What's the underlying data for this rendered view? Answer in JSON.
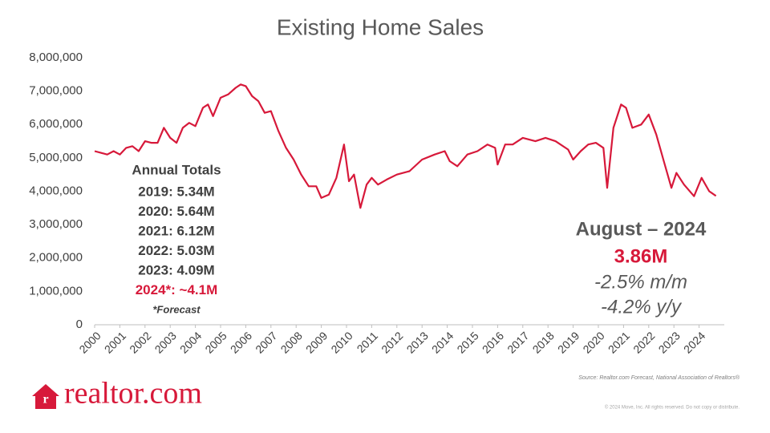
{
  "chart_data": {
    "type": "line",
    "title": "Existing Home Sales",
    "x": [
      2000.0,
      2000.25,
      2000.5,
      2000.75,
      2001.0,
      2001.25,
      2001.5,
      2001.75,
      2002.0,
      2002.25,
      2002.5,
      2002.75,
      2003.0,
      2003.25,
      2003.5,
      2003.75,
      2004.0,
      2004.3,
      2004.5,
      2004.7,
      2005.0,
      2005.3,
      2005.6,
      2005.8,
      2006.0,
      2006.25,
      2006.5,
      2006.75,
      2007.0,
      2007.3,
      2007.6,
      2007.9,
      2008.2,
      2008.5,
      2008.8,
      2009.0,
      2009.3,
      2009.6,
      2009.9,
      2010.1,
      2010.3,
      2010.55,
      2010.8,
      2011.0,
      2011.25,
      2011.6,
      2012.0,
      2012.5,
      2013.0,
      2013.5,
      2013.9,
      2014.1,
      2014.4,
      2014.8,
      2015.2,
      2015.6,
      2015.9,
      2016.0,
      2016.3,
      2016.6,
      2017.0,
      2017.5,
      2017.9,
      2018.3,
      2018.8,
      2019.0,
      2019.3,
      2019.6,
      2019.9,
      2020.2,
      2020.35,
      2020.6,
      2020.9,
      2021.1,
      2021.35,
      2021.7,
      2022.0,
      2022.3,
      2022.6,
      2022.9,
      2023.1,
      2023.4,
      2023.8,
      2024.1,
      2024.4,
      2024.67
    ],
    "series": [
      {
        "name": "Existing Home Sales",
        "color": "#d7193a",
        "values": [
          5200000,
          5150000,
          5100000,
          5200000,
          5100000,
          5300000,
          5350000,
          5200000,
          5500000,
          5450000,
          5450000,
          5900000,
          5600000,
          5450000,
          5900000,
          6050000,
          5950000,
          6500000,
          6600000,
          6250000,
          6800000,
          6900000,
          7100000,
          7200000,
          7150000,
          6850000,
          6700000,
          6350000,
          6400000,
          5800000,
          5300000,
          4950000,
          4500000,
          4150000,
          4150000,
          3800000,
          3900000,
          4400000,
          5400000,
          4300000,
          4500000,
          3500000,
          4200000,
          4400000,
          4200000,
          4350000,
          4500000,
          4600000,
          4950000,
          5100000,
          5200000,
          4900000,
          4750000,
          5100000,
          5200000,
          5400000,
          5300000,
          4800000,
          5400000,
          5400000,
          5600000,
          5500000,
          5600000,
          5500000,
          5250000,
          4950000,
          5200000,
          5400000,
          5450000,
          5300000,
          4100000,
          5900000,
          6600000,
          6500000,
          5900000,
          6000000,
          6300000,
          5700000,
          4900000,
          4100000,
          4550000,
          4200000,
          3850000,
          4400000,
          4000000,
          3860000
        ]
      }
    ],
    "xlim": [
      2000,
      2025
    ],
    "xticks": [
      2000,
      2001,
      2002,
      2003,
      2004,
      2005,
      2006,
      2007,
      2008,
      2009,
      2010,
      2011,
      2012,
      2013,
      2014,
      2015,
      2016,
      2017,
      2018,
      2019,
      2020,
      2021,
      2022,
      2023,
      2024
    ],
    "ylim": [
      0,
      8000000
    ],
    "yticks": [
      0,
      {
        "value": 1000000,
        "label": "1,000,000"
      },
      {
        "value": 2000000,
        "label": "2,000,000"
      },
      {
        "value": 3000000,
        "label": "3,000,000"
      },
      {
        "value": 4000000,
        "label": "4,000,000"
      },
      {
        "value": 5000000,
        "label": "5,000,000"
      },
      {
        "value": 6000000,
        "label": "6,000,000"
      },
      {
        "value": 7000000,
        "label": "7,000,000"
      },
      {
        "value": 8000000,
        "label": "8,000,000"
      }
    ],
    "annual_totals": {
      "heading": "Annual Totals",
      "lines": [
        "2019: 5.34M",
        "2020: 5.64M",
        "2021: 6.12M",
        "2022: 5.03M",
        "2023: 4.09M"
      ],
      "forecast_line": "2024*: ~4.1M",
      "note": "*Forecast"
    },
    "latest": {
      "period": "August – 2024",
      "value": "3.86M",
      "mom": "-2.5%  m/m",
      "yoy": "-4.2%  y/y"
    },
    "source": "Source: Realtor.com Forecast, National Association of Realtors®",
    "copyright": "© 2024 Move, Inc. All rights reserved. Do not copy or distribute.",
    "logo": "realtor.com"
  }
}
